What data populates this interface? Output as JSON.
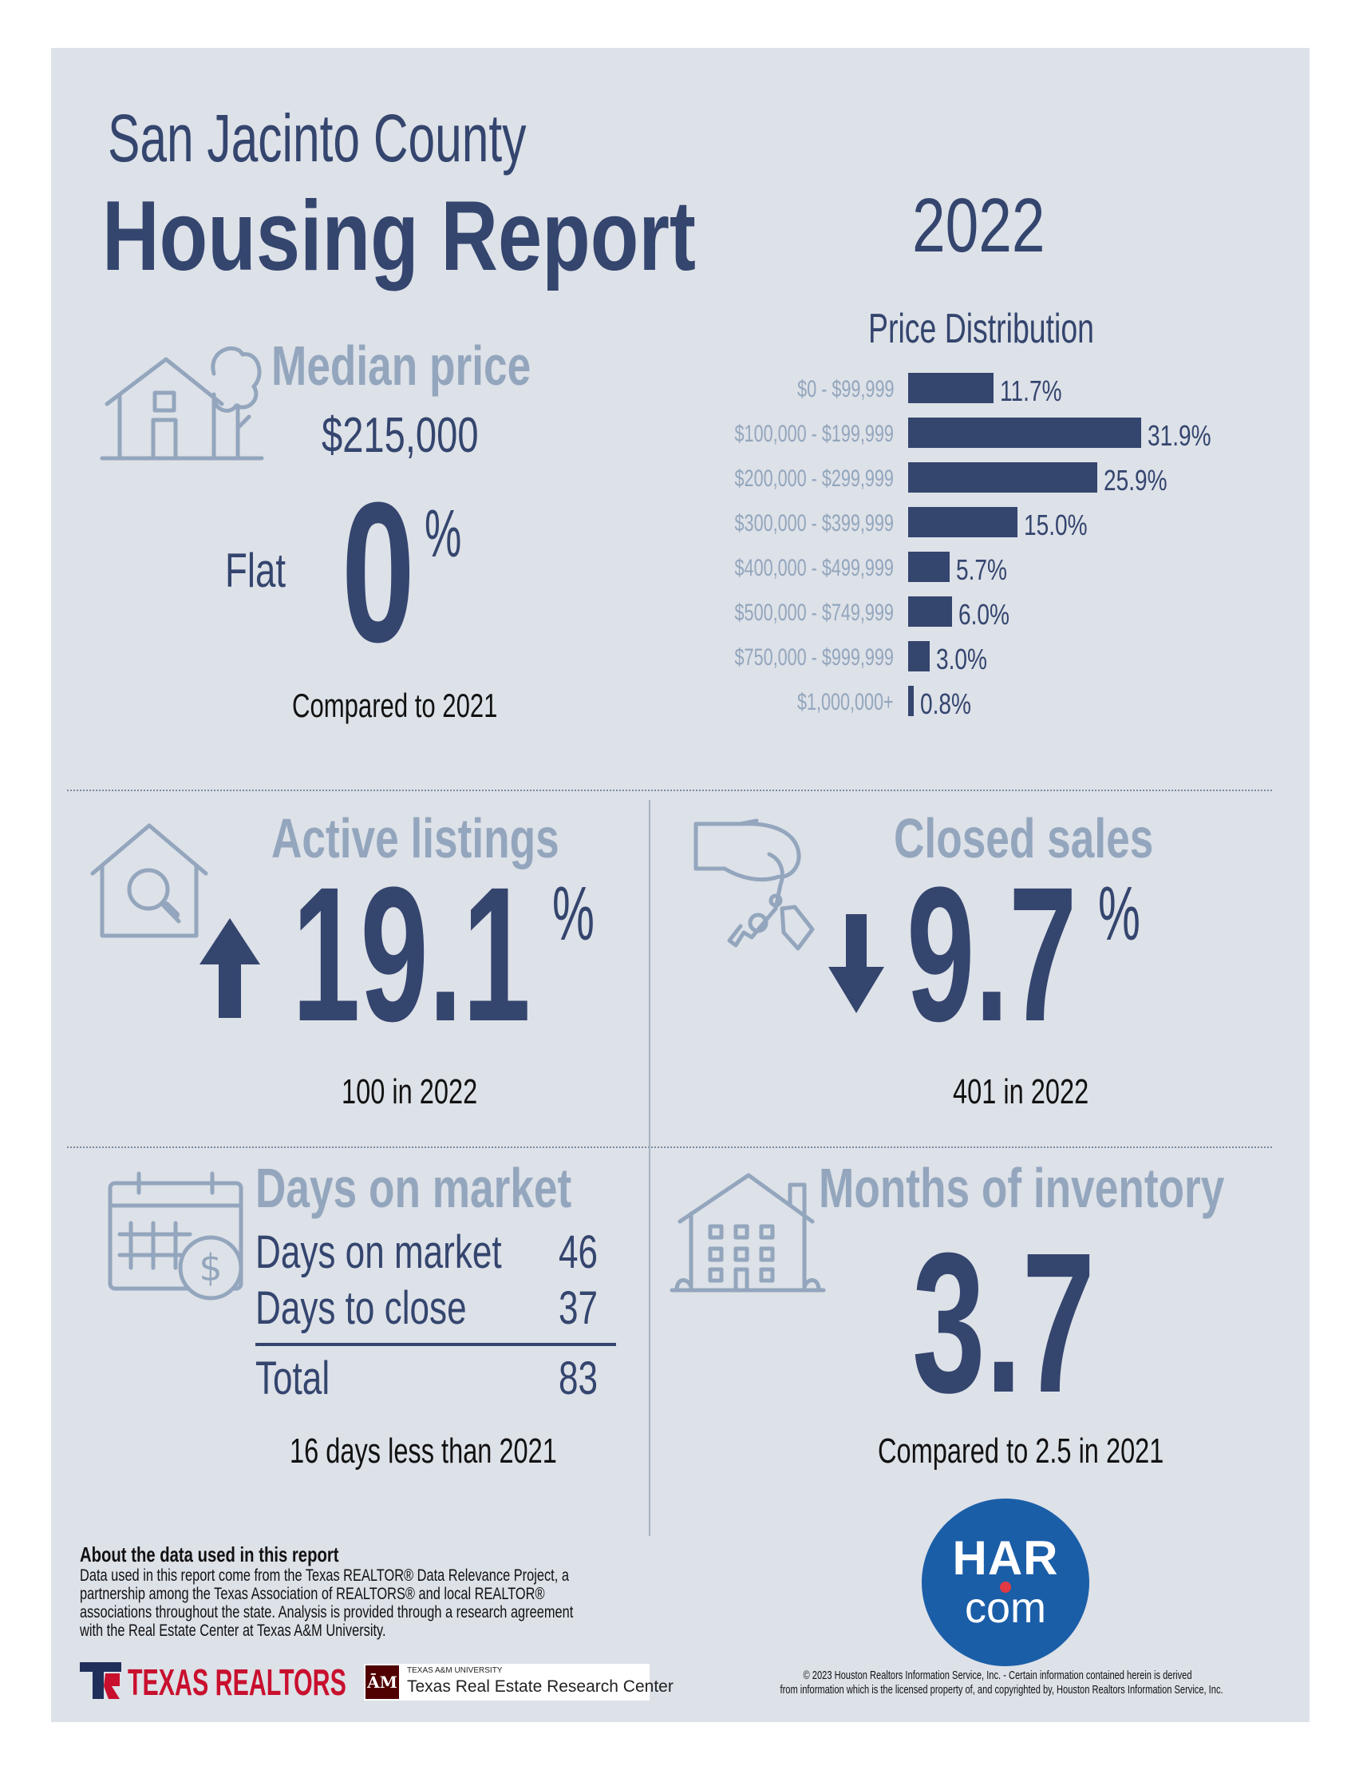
{
  "header": {
    "county": "San Jacinto County",
    "report_title": "Housing Report",
    "year": "2022"
  },
  "median_price": {
    "title": "Median price",
    "value": "$215,000",
    "trend_label": "Flat",
    "change_number": "0",
    "percent_sign": "%",
    "comparison": "Compared to 2021"
  },
  "price_distribution": {
    "title": "Price Distribution"
  },
  "chart_data": {
    "type": "bar",
    "orientation": "horizontal",
    "title": "Price Distribution",
    "categories": [
      "$0 - $99,999",
      "$100,000 - $199,999",
      "$200,000 - $299,999",
      "$300,000 - $399,999",
      "$400,000 - $499,999",
      "$500,000 - $749,999",
      "$750,000 - $999,999",
      "$1,000,000+"
    ],
    "values": [
      11.7,
      31.9,
      25.9,
      15.0,
      5.7,
      6.0,
      3.0,
      0.8
    ],
    "value_labels": [
      "11.7%",
      "31.9%",
      "25.9%",
      "15.0%",
      "5.7%",
      "6.0%",
      "3.0%",
      "0.8%"
    ],
    "bar_color": "#34456e"
  },
  "active_listings": {
    "title": "Active listings",
    "direction": "up",
    "change_number": "19.1",
    "percent_sign": "%",
    "caption": "100 in 2022"
  },
  "closed_sales": {
    "title": "Closed sales",
    "direction": "down",
    "change_number": "9.7",
    "percent_sign": "%",
    "caption": "401 in 2022"
  },
  "days_on_market": {
    "title": "Days on market",
    "rows": [
      {
        "label": "Days on market",
        "value": "46"
      },
      {
        "label": "Days to close",
        "value": "37"
      }
    ],
    "total_label": "Total",
    "total_value": "83",
    "caption": "16 days less than 2021"
  },
  "months_inventory": {
    "title": "Months of inventory",
    "value": "3.7",
    "caption": "Compared to 2.5 in 2021"
  },
  "footer": {
    "about_title": "About the data used in this report",
    "about_lines": [
      "Data used in this report come from the Texas REALTOR® Data Relevance Project, a",
      "partnership among the Texas Association of REALTORS® and local REALTOR®",
      "associations throughout the state. Analysis is provided through a research agreement",
      "with the Real Estate Center at Texas A&M University."
    ],
    "texas_realtors": "TEXAS REALTORS",
    "tamu_small": "TEXAS A&M UNIVERSITY",
    "tamu_name": "Texas Real Estate Research Center",
    "tamu_mark": "ĀM",
    "har_top": "HAR",
    "har_bottom": "com",
    "copyright_line1": "© 2023 Houston Realtors Information Service, Inc. - Certain information contained herein is derived",
    "copyright_line2": "from information which is the licensed property of, and copyrighted by, Houston Realtors Information Service, Inc."
  },
  "colors": {
    "navy": "#34456e",
    "muted": "#93a6bd",
    "panel": "#dde1e8",
    "har_blue": "#1b5ea8",
    "texas_red": "#c8102e",
    "tamu_maroon": "#500000"
  }
}
